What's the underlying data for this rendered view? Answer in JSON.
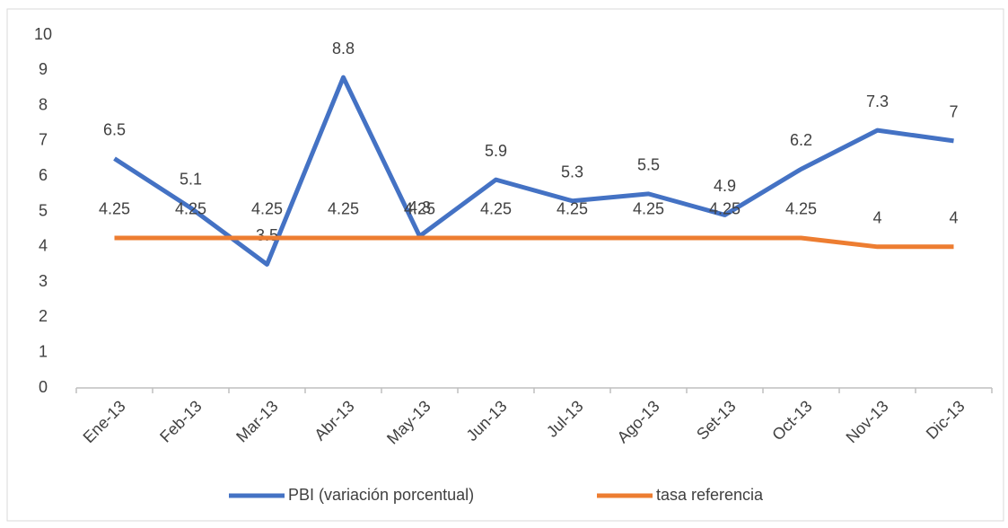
{
  "chart_data": {
    "type": "line",
    "categories": [
      "Ene-13",
      "Feb-13",
      "Mar-13",
      "Abr-13",
      "May-13",
      "Jun-13",
      "Jul-13",
      "Ago-13",
      "Set-13",
      "Oct-13",
      "Nov-13",
      "Dic-13"
    ],
    "series": [
      {
        "name": "PBI (variación porcentual)",
        "color": "#4472c4",
        "values": [
          6.5,
          5.1,
          3.5,
          8.8,
          4.3,
          5.9,
          5.3,
          5.5,
          4.9,
          6.2,
          7.3,
          7
        ]
      },
      {
        "name": "tasa referencia",
        "color": "#ed7d31",
        "values": [
          4.25,
          4.25,
          4.25,
          4.25,
          4.25,
          4.25,
          4.25,
          4.25,
          4.25,
          4.25,
          4,
          4
        ]
      }
    ],
    "ylim": [
      0,
      10
    ],
    "yticks": [
      0,
      1,
      2,
      3,
      4,
      5,
      6,
      7,
      8,
      9,
      10
    ],
    "grid": false,
    "legend": "bottom"
  }
}
